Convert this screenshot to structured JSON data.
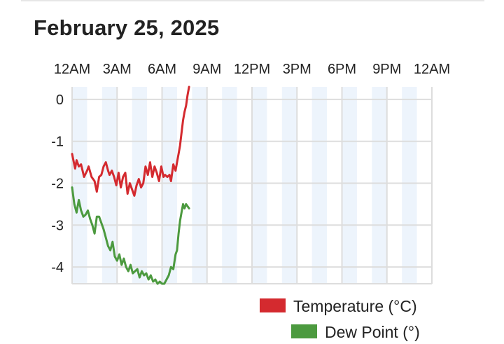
{
  "title": "February 25, 2025",
  "chart_data": {
    "type": "line",
    "title": "February 25, 2025",
    "xlabel": "",
    "ylabel": "",
    "x_range_hours": [
      0,
      24
    ],
    "ylim": [
      -4.4,
      0.3
    ],
    "x_ticks": [
      {
        "hour": 0,
        "label": "12AM"
      },
      {
        "hour": 3,
        "label": "3AM"
      },
      {
        "hour": 6,
        "label": "6AM"
      },
      {
        "hour": 9,
        "label": "9AM"
      },
      {
        "hour": 12,
        "label": "12PM"
      },
      {
        "hour": 15,
        "label": "3PM"
      },
      {
        "hour": 18,
        "label": "6PM"
      },
      {
        "hour": 21,
        "label": "9PM"
      },
      {
        "hour": 24,
        "label": "12AM"
      }
    ],
    "y_ticks": [
      {
        "value": 0,
        "label": "0"
      },
      {
        "value": -1,
        "label": "-1"
      },
      {
        "value": -2,
        "label": "-2"
      },
      {
        "value": -3,
        "label": "-3"
      },
      {
        "value": -4,
        "label": "-4"
      }
    ],
    "grid": true,
    "legend_position": "bottom-right",
    "colors": {
      "temperature": "#d42a2f",
      "dew_point": "#4c9a3f",
      "grid": "#dddddd",
      "band": "#edf4fc"
    },
    "series": [
      {
        "name": "Temperature (°C)",
        "color": "#d42a2f",
        "x": [
          0.0,
          0.2,
          0.3,
          0.45,
          0.6,
          0.8,
          1.0,
          1.1,
          1.3,
          1.5,
          1.65,
          1.8,
          1.95,
          2.1,
          2.25,
          2.4,
          2.5,
          2.65,
          2.8,
          2.95,
          3.1,
          3.25,
          3.4,
          3.55,
          3.7,
          3.85,
          4.0,
          4.15,
          4.3,
          4.45,
          4.6,
          4.75,
          4.9,
          5.05,
          5.2,
          5.35,
          5.5,
          5.65,
          5.8,
          5.95,
          6.1,
          6.2,
          6.35,
          6.5,
          6.6,
          6.75,
          6.9,
          7.0,
          7.1,
          7.2,
          7.3,
          7.4,
          7.5,
          7.6,
          7.7,
          7.8
        ],
        "y": [
          -1.3,
          -1.65,
          -1.45,
          -1.6,
          -1.55,
          -1.85,
          -1.7,
          -1.6,
          -1.85,
          -1.95,
          -2.2,
          -1.85,
          -1.8,
          -1.6,
          -1.5,
          -1.7,
          -1.8,
          -1.7,
          -1.85,
          -2.05,
          -1.75,
          -2.1,
          -1.85,
          -1.75,
          -2.25,
          -2.0,
          -2.15,
          -2.3,
          -2.05,
          -1.9,
          -2.1,
          -2.0,
          -1.6,
          -1.8,
          -1.5,
          -1.85,
          -1.6,
          -1.75,
          -1.95,
          -1.6,
          -1.85,
          -1.8,
          -1.85,
          -1.8,
          -1.95,
          -1.55,
          -1.7,
          -1.5,
          -1.3,
          -1.1,
          -0.8,
          -0.5,
          -0.3,
          -0.15,
          0.1,
          0.3
        ]
      },
      {
        "name": "Dew Point (°)",
        "color": "#4c9a3f",
        "x": [
          0.0,
          0.15,
          0.3,
          0.45,
          0.6,
          0.75,
          0.9,
          1.05,
          1.2,
          1.35,
          1.5,
          1.65,
          1.8,
          1.95,
          2.1,
          2.25,
          2.4,
          2.55,
          2.7,
          2.85,
          3.0,
          3.15,
          3.3,
          3.45,
          3.6,
          3.75,
          3.9,
          4.05,
          4.2,
          4.35,
          4.5,
          4.65,
          4.8,
          4.95,
          5.1,
          5.25,
          5.4,
          5.55,
          5.7,
          5.85,
          6.0,
          6.15,
          6.3,
          6.45,
          6.6,
          6.75,
          6.9,
          7.0,
          7.1,
          7.2,
          7.3,
          7.4,
          7.5,
          7.6,
          7.7,
          7.8
        ],
        "y": [
          -2.1,
          -2.5,
          -2.7,
          -2.4,
          -2.65,
          -2.8,
          -2.75,
          -2.65,
          -2.85,
          -3.0,
          -3.2,
          -2.8,
          -2.8,
          -2.95,
          -3.1,
          -3.3,
          -3.5,
          -3.6,
          -3.4,
          -3.75,
          -3.85,
          -3.7,
          -3.95,
          -3.8,
          -4.0,
          -4.1,
          -3.95,
          -4.15,
          -4.1,
          -4.05,
          -4.25,
          -4.1,
          -4.2,
          -4.15,
          -4.3,
          -4.2,
          -4.35,
          -4.3,
          -4.4,
          -4.35,
          -4.4,
          -4.4,
          -4.3,
          -4.2,
          -4.0,
          -4.05,
          -3.7,
          -3.6,
          -3.2,
          -2.9,
          -2.7,
          -2.5,
          -2.6,
          -2.5,
          -2.55,
          -2.6
        ]
      }
    ]
  }
}
